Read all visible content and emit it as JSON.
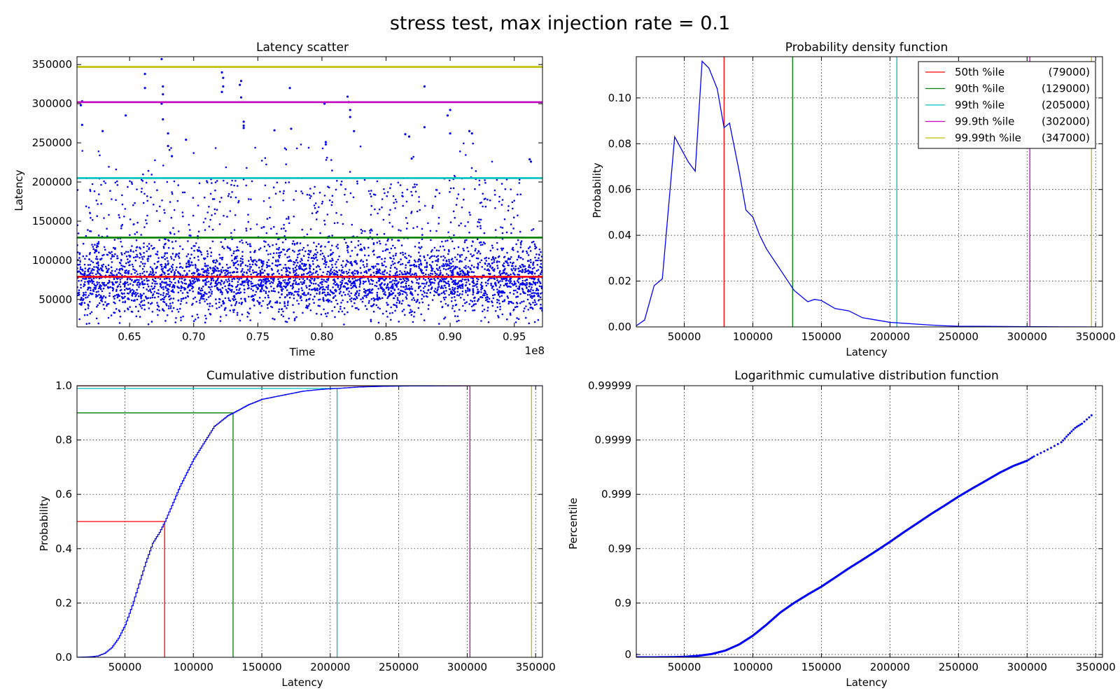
{
  "figure": {
    "suptitle": "stress test, max injection rate = 0.1"
  },
  "colors": {
    "points": "#0000ff",
    "p50": "#ff0000",
    "p90": "#008000",
    "p99": "#00bfbf",
    "p999": "#bf00bf",
    "p9999": "#bfbf00"
  },
  "chart_data": [
    {
      "type": "scatter",
      "title": "Latency scatter",
      "xlabel": "Time",
      "ylabel": "Latency",
      "x_offset_label": "1e8",
      "xlim": [
        0.609,
        0.972
      ],
      "ylim": [
        15000,
        360000
      ],
      "xticks": [
        {
          "v": 0.65,
          "label": "0.65"
        },
        {
          "v": 0.7,
          "label": "0.70"
        },
        {
          "v": 0.75,
          "label": "0.75"
        },
        {
          "v": 0.8,
          "label": "0.80"
        },
        {
          "v": 0.85,
          "label": "0.85"
        },
        {
          "v": 0.9,
          "label": "0.90"
        },
        {
          "v": 0.95,
          "label": "0.95"
        }
      ],
      "yticks": [
        {
          "v": 50000,
          "label": "50000"
        },
        {
          "v": 100000,
          "label": "100000"
        },
        {
          "v": 150000,
          "label": "150000"
        },
        {
          "v": 200000,
          "label": "200000"
        },
        {
          "v": 250000,
          "label": "250000"
        },
        {
          "v": 300000,
          "label": "300000"
        },
        {
          "v": 350000,
          "label": "350000"
        }
      ],
      "grid": false,
      "hlines": [
        {
          "y": 79000,
          "color": "p50"
        },
        {
          "y": 129000,
          "color": "p90"
        },
        {
          "y": 205000,
          "color": "p99"
        },
        {
          "y": 302000,
          "color": "p999"
        },
        {
          "y": 347000,
          "color": "p9999"
        }
      ],
      "series": [
        {
          "kind": "dense points",
          "x_range": [
            0.609,
            0.972
          ],
          "bulk_range": [
            25000,
            130000
          ],
          "max_y": 357000,
          "outliers": [
            [
              0.612,
              298000
            ],
            [
              0.613,
              303000
            ],
            [
              0.613,
              273000
            ],
            [
              0.629,
              265000
            ],
            [
              0.647,
              285000
            ],
            [
              0.662,
              338000
            ],
            [
              0.662,
              320000
            ],
            [
              0.675,
              357000
            ],
            [
              0.676,
              322000
            ],
            [
              0.676,
              312000
            ],
            [
              0.675,
              300000
            ],
            [
              0.676,
              280000
            ],
            [
              0.68,
              262000
            ],
            [
              0.68,
              246000
            ],
            [
              0.683,
              233000
            ],
            [
              0.694,
              254000
            ],
            [
              0.722,
              340000
            ],
            [
              0.723,
              333000
            ],
            [
              0.723,
              322000
            ],
            [
              0.722,
              315000
            ],
            [
              0.737,
              329000
            ],
            [
              0.736,
              324000
            ],
            [
              0.737,
              308000
            ],
            [
              0.739,
              277000
            ],
            [
              0.739,
              272000
            ],
            [
              0.739,
              269000
            ],
            [
              0.763,
              266000
            ],
            [
              0.775,
              320000
            ],
            [
              0.776,
              268000
            ],
            [
              0.802,
              300000
            ],
            [
              0.803,
              251000
            ],
            [
              0.803,
              248000
            ],
            [
              0.82,
              309000
            ],
            [
              0.821,
              302000
            ],
            [
              0.822,
              292000
            ],
            [
              0.822,
              283000
            ],
            [
              0.825,
              265000
            ],
            [
              0.865,
              261000
            ],
            [
              0.868,
              258000
            ],
            [
              0.87,
              230000
            ],
            [
              0.88,
              322000
            ],
            [
              0.88,
              270000
            ],
            [
              0.9,
              292000
            ],
            [
              0.898,
              285000
            ],
            [
              0.9,
              262000
            ],
            [
              0.915,
              265000
            ],
            [
              0.917,
              262000
            ],
            [
              0.962,
              229000
            ],
            [
              0.963,
              226000
            ]
          ]
        }
      ]
    },
    {
      "type": "line",
      "title": "Probability density function",
      "xlabel": "Latency",
      "ylabel": "Probability",
      "xlim": [
        15000,
        355000
      ],
      "ylim": [
        0.0,
        0.118
      ],
      "xticks": [
        {
          "v": 50000,
          "label": "50000"
        },
        {
          "v": 100000,
          "label": "100000"
        },
        {
          "v": 150000,
          "label": "150000"
        },
        {
          "v": 200000,
          "label": "200000"
        },
        {
          "v": 250000,
          "label": "250000"
        },
        {
          "v": 300000,
          "label": "300000"
        },
        {
          "v": 350000,
          "label": "350000"
        }
      ],
      "yticks": [
        {
          "v": 0.0,
          "label": "0.00"
        },
        {
          "v": 0.02,
          "label": "0.02"
        },
        {
          "v": 0.04,
          "label": "0.04"
        },
        {
          "v": 0.06,
          "label": "0.06"
        },
        {
          "v": 0.08,
          "label": "0.08"
        },
        {
          "v": 0.1,
          "label": "0.10"
        }
      ],
      "grid": true,
      "vlines": [
        {
          "x": 79000,
          "color": "p50"
        },
        {
          "x": 129000,
          "color": "p90"
        },
        {
          "x": 205000,
          "color": "p99"
        },
        {
          "x": 302000,
          "color": "p999"
        },
        {
          "x": 347000,
          "color": "p9999"
        }
      ],
      "legend_placement": "top-right",
      "legend": [
        {
          "label": "50th %ile",
          "value": "(79000)",
          "color": "p50"
        },
        {
          "label": "90th %ile",
          "value": "(129000)",
          "color": "p90"
        },
        {
          "label": "99th %ile",
          "value": "(205000)",
          "color": "p99"
        },
        {
          "label": "99.9th %ile",
          "value": "(302000)",
          "color": "p999"
        },
        {
          "label": "99.99th %ile",
          "value": "(347000)",
          "color": "p9999"
        }
      ],
      "series": [
        {
          "x": [
            15000,
            21000,
            28000,
            34000,
            43000,
            53000,
            58000,
            63000,
            68000,
            74000,
            79000,
            83000,
            90000,
            95000,
            100000,
            105000,
            110000,
            120000,
            130000,
            140000,
            145000,
            150000,
            160000,
            170000,
            180000,
            190000,
            200000,
            210000,
            220000,
            230000,
            240000,
            250000,
            300000,
            350000
          ],
          "y": [
            0.0005,
            0.003,
            0.018,
            0.021,
            0.083,
            0.072,
            0.068,
            0.116,
            0.113,
            0.104,
            0.087,
            0.089,
            0.068,
            0.051,
            0.048,
            0.04,
            0.034,
            0.025,
            0.016,
            0.011,
            0.012,
            0.0115,
            0.008,
            0.007,
            0.004,
            0.003,
            0.002,
            0.0016,
            0.0012,
            0.0008,
            0.0005,
            0.0003,
            0.0001,
            0.0
          ]
        }
      ]
    },
    {
      "type": "line",
      "title": "Cumulative distribution function",
      "xlabel": "Latency",
      "ylabel": "Probability",
      "xlim": [
        15000,
        355000
      ],
      "ylim": [
        0.0,
        1.0
      ],
      "xticks": [
        {
          "v": 50000,
          "label": "50000"
        },
        {
          "v": 100000,
          "label": "100000"
        },
        {
          "v": 150000,
          "label": "150000"
        },
        {
          "v": 200000,
          "label": "200000"
        },
        {
          "v": 250000,
          "label": "250000"
        },
        {
          "v": 300000,
          "label": "300000"
        },
        {
          "v": 350000,
          "label": "350000"
        }
      ],
      "yticks": [
        {
          "v": 0.0,
          "label": "0.0"
        },
        {
          "v": 0.2,
          "label": "0.2"
        },
        {
          "v": 0.4,
          "label": "0.4"
        },
        {
          "v": 0.6,
          "label": "0.6"
        },
        {
          "v": 0.8,
          "label": "0.8"
        },
        {
          "v": 1.0,
          "label": "1.0"
        }
      ],
      "grid": true,
      "markers": [
        {
          "x": 79000,
          "y": 0.5,
          "color": "p50"
        },
        {
          "x": 129000,
          "y": 0.9,
          "color": "p90"
        },
        {
          "x": 205000,
          "y": 0.99,
          "color": "p99"
        },
        {
          "x": 302000,
          "y": 0.999,
          "color": "p999"
        },
        {
          "x": 347000,
          "y": 0.9999,
          "color": "p9999"
        }
      ],
      "series": [
        {
          "x": [
            15000,
            25000,
            30000,
            35000,
            40000,
            45000,
            50000,
            55000,
            60000,
            65000,
            70000,
            75000,
            79000,
            85000,
            90000,
            95000,
            100000,
            105000,
            110000,
            115000,
            120000,
            125000,
            129000,
            140000,
            150000,
            160000,
            170000,
            180000,
            190000,
            200000,
            205000,
            220000,
            240000,
            260000,
            300000,
            350000
          ],
          "y": [
            0.0,
            0.002,
            0.005,
            0.015,
            0.035,
            0.07,
            0.12,
            0.19,
            0.27,
            0.35,
            0.42,
            0.46,
            0.5,
            0.57,
            0.63,
            0.68,
            0.73,
            0.77,
            0.81,
            0.85,
            0.87,
            0.89,
            0.9,
            0.93,
            0.95,
            0.96,
            0.97,
            0.98,
            0.985,
            0.989,
            0.99,
            0.995,
            0.998,
            0.999,
            1.0,
            1.0
          ]
        }
      ]
    },
    {
      "type": "scatter",
      "title": "Logarithmic cumulative distribution function",
      "xlabel": "Latency",
      "ylabel": "Percentile",
      "xlim": [
        15000,
        355000
      ],
      "yscale": "log of 1/(1-p)",
      "ylim": [
        0.0,
        0.99999
      ],
      "xticks": [
        {
          "v": 50000,
          "label": "50000"
        },
        {
          "v": 100000,
          "label": "100000"
        },
        {
          "v": 150000,
          "label": "150000"
        },
        {
          "v": 200000,
          "label": "200000"
        },
        {
          "v": 250000,
          "label": "250000"
        },
        {
          "v": 300000,
          "label": "300000"
        },
        {
          "v": 350000,
          "label": "350000"
        }
      ],
      "yticks": [
        {
          "v": 0.0,
          "label": "0"
        },
        {
          "v": 0.9,
          "label": "0.9"
        },
        {
          "v": 0.99,
          "label": "0.99"
        },
        {
          "v": 0.999,
          "label": "0.999"
        },
        {
          "v": 0.9999,
          "label": "0.9999"
        },
        {
          "v": 0.99999,
          "label": "0.99999"
        }
      ],
      "grid": true,
      "series": [
        {
          "x": [
            15000,
            30000,
            40000,
            50000,
            60000,
            70000,
            80000,
            90000,
            100000,
            110000,
            120000,
            130000,
            140000,
            150000,
            160000,
            170000,
            180000,
            190000,
            200000,
            210000,
            220000,
            230000,
            240000,
            250000,
            260000,
            270000,
            280000,
            290000,
            300000,
            305000,
            315000,
            325000,
            330000,
            335000,
            340000,
            347000
          ],
          "y": [
            0.0,
            0.001,
            0.005,
            0.02,
            0.06,
            0.13,
            0.25,
            0.42,
            0.6,
            0.75,
            0.85,
            0.9,
            0.93,
            0.95,
            0.966,
            0.977,
            0.984,
            0.989,
            0.9925,
            0.995,
            0.9966,
            0.9977,
            0.9984,
            0.9989,
            0.99922,
            0.99944,
            0.9996,
            0.9997,
            0.99976,
            0.9998,
            0.99985,
            0.99989,
            0.99992,
            0.99994,
            0.99995,
            0.999965
          ]
        }
      ]
    }
  ]
}
